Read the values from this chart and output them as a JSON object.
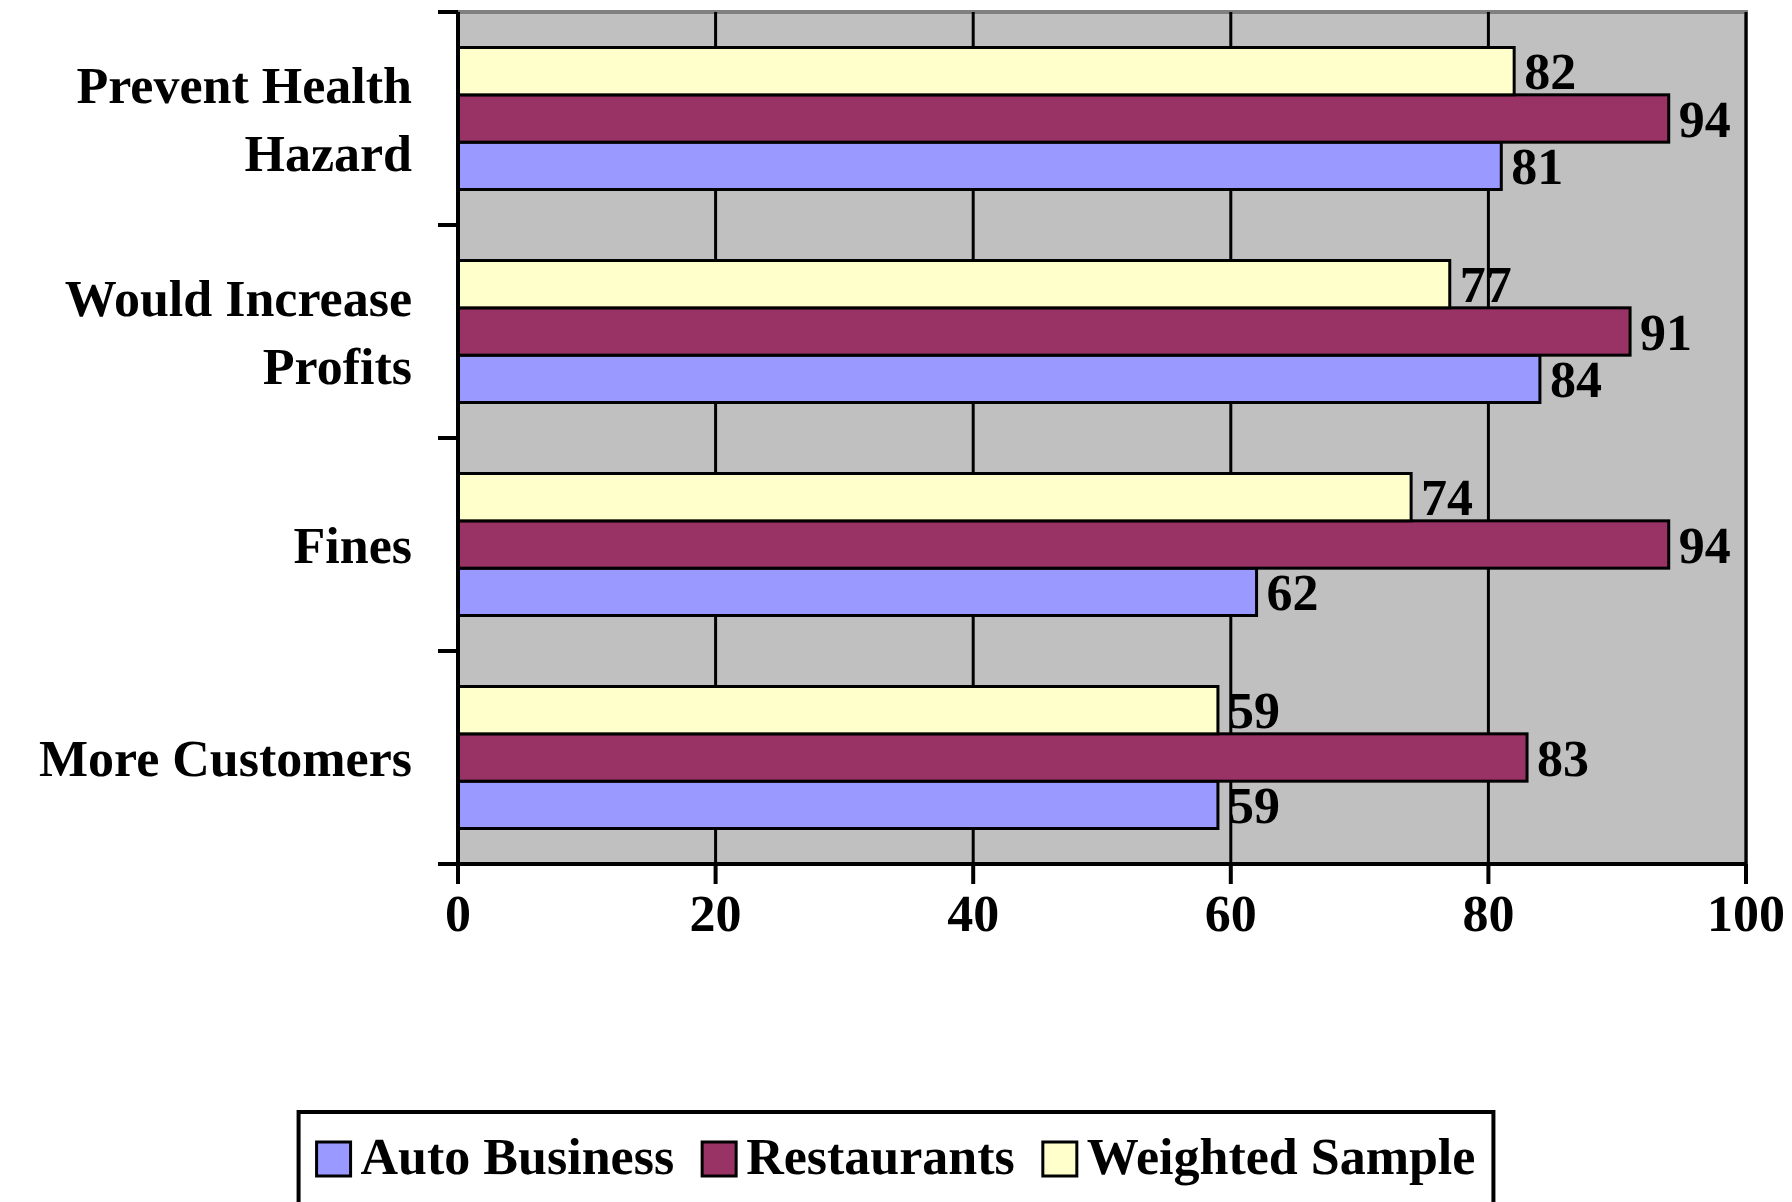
{
  "chart_data": {
    "type": "bar",
    "orientation": "horizontal",
    "categories": [
      "Prevent Health Hazard",
      "Would Increase Profits",
      "Fines",
      "More Customers"
    ],
    "series": [
      {
        "name": "Auto Business",
        "color": "#9999ff",
        "values": [
          81,
          84,
          62,
          59
        ]
      },
      {
        "name": "Restaurants",
        "color": "#993366",
        "values": [
          94,
          91,
          94,
          83
        ]
      },
      {
        "name": "Weighted Sample",
        "color": "#ffffcc",
        "values": [
          82,
          77,
          74,
          59
        ]
      }
    ],
    "xlim": [
      0,
      100
    ],
    "xticks": [
      0,
      20,
      40,
      60,
      80,
      100
    ],
    "grid": "x",
    "legend": "bottom",
    "data_labels": true
  }
}
